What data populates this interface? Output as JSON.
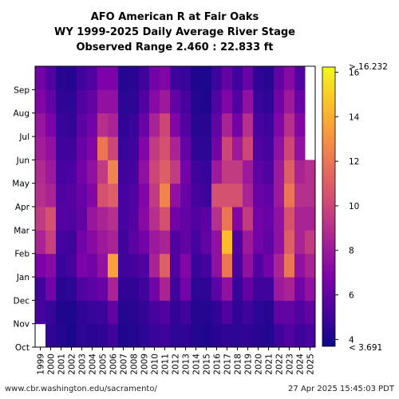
{
  "chart_data": {
    "type": "heatmap",
    "title_lines": [
      "AFO American R at Fair Oaks",
      "WY 1999-2025 Daily Average River Stage",
      "Observed Range 2.460 : 22.833 ft"
    ],
    "xlabel": "",
    "ylabel": "",
    "x_categories": [
      "1999",
      "2000",
      "2001",
      "2002",
      "2003",
      "2004",
      "2005",
      "2006",
      "2007",
      "2008",
      "2009",
      "2010",
      "2011",
      "2012",
      "2013",
      "2014",
      "2015",
      "2016",
      "2017",
      "2018",
      "2019",
      "2020",
      "2021",
      "2022",
      "2023",
      "2024",
      "2025"
    ],
    "y_month_labels": [
      "Oct",
      "Nov",
      "Dec",
      "Jan",
      "Feb",
      "Mar",
      "Apr",
      "May",
      "Jun",
      "Jul",
      "Aug",
      "Sep"
    ],
    "y_axis_note": "Water year day, Oct 1 at bottom to Sep 30 at top",
    "colorbar": {
      "colormap": "plasma",
      "vmin": 3.691,
      "vmax": 16.232,
      "ticks": [
        4,
        6,
        8,
        10,
        12,
        14,
        16
      ],
      "over_label": "> 16.232",
      "under_label": "< 3.691"
    },
    "monthly_stage_ft": [
      [
        null,
        5.2,
        5.0,
        6.8,
        8.5,
        9.5,
        9.0,
        8.8,
        8.2,
        7.8,
        7.0,
        6.5
      ],
      [
        4.6,
        4.8,
        6.5,
        7.2,
        9.8,
        10.5,
        8.5,
        8.0,
        7.5,
        6.8,
        6.0,
        5.5
      ],
      [
        4.3,
        4.2,
        4.4,
        4.8,
        5.2,
        5.6,
        5.5,
        5.2,
        5.0,
        4.8,
        4.6,
        4.4
      ],
      [
        4.0,
        4.1,
        4.5,
        5.2,
        5.0,
        5.5,
        5.6,
        5.3,
        5.0,
        4.7,
        4.5,
        4.3
      ],
      [
        4.5,
        4.6,
        5.5,
        6.8,
        6.5,
        6.0,
        6.2,
        6.5,
        6.2,
        5.8,
        5.5,
        5.0
      ],
      [
        4.4,
        4.8,
        5.8,
        6.5,
        7.2,
        7.8,
        7.0,
        7.5,
        7.0,
        6.5,
        6.0,
        5.5
      ],
      [
        4.6,
        4.9,
        6.2,
        7.5,
        8.0,
        8.5,
        10.5,
        9.5,
        12.0,
        9.0,
        7.5,
        6.8
      ],
      [
        5.0,
        6.0,
        8.5,
        13.5,
        8.5,
        9.0,
        11.0,
        12.5,
        10.0,
        8.5,
        7.5,
        6.8
      ],
      [
        4.2,
        4.3,
        4.6,
        5.0,
        5.0,
        5.2,
        5.2,
        5.0,
        4.8,
        4.6,
        4.5,
        4.3
      ],
      [
        4.3,
        4.4,
        4.6,
        5.2,
        5.8,
        5.6,
        5.5,
        5.2,
        5.0,
        4.8,
        4.5,
        4.4
      ],
      [
        4.5,
        4.7,
        5.0,
        5.5,
        6.5,
        7.2,
        7.0,
        7.5,
        7.0,
        6.2,
        5.5,
        5.0
      ],
      [
        4.8,
        5.2,
        6.5,
        8.5,
        8.0,
        9.0,
        9.5,
        10.0,
        9.5,
        8.5,
        7.2,
        6.5
      ],
      [
        5.0,
        5.5,
        8.5,
        11.0,
        8.5,
        10.5,
        12.5,
        11.0,
        10.5,
        10.0,
        8.0,
        7.0
      ],
      [
        4.5,
        4.6,
        5.0,
        5.5,
        5.5,
        6.5,
        7.5,
        9.5,
        8.5,
        7.0,
        6.0,
        5.0
      ],
      [
        4.6,
        5.0,
        6.5,
        7.0,
        6.0,
        6.0,
        6.2,
        6.5,
        6.0,
        5.5,
        5.2,
        4.8
      ],
      [
        4.3,
        4.3,
        4.5,
        4.8,
        5.2,
        5.5,
        5.2,
        5.0,
        4.6,
        4.4,
        4.3,
        4.2
      ],
      [
        4.2,
        4.3,
        4.6,
        5.2,
        6.0,
        5.8,
        5.0,
        4.8,
        4.5,
        4.4,
        4.2,
        4.1
      ],
      [
        4.4,
        4.6,
        5.8,
        7.5,
        7.5,
        9.0,
        10.5,
        8.0,
        6.5,
        6.0,
        5.5,
        5.0
      ],
      [
        4.6,
        5.5,
        7.5,
        12.0,
        14.5,
        12.0,
        10.5,
        9.5,
        10.0,
        8.5,
        7.0,
        6.0
      ],
      [
        4.5,
        4.6,
        4.8,
        5.2,
        5.5,
        7.0,
        10.5,
        9.5,
        8.0,
        6.5,
        5.5,
        5.0
      ],
      [
        4.6,
        5.0,
        6.0,
        7.5,
        8.0,
        9.5,
        8.5,
        8.0,
        10.0,
        9.0,
        7.5,
        6.2
      ],
      [
        4.4,
        4.5,
        5.0,
        5.5,
        6.5,
        6.5,
        6.2,
        5.8,
        5.5,
        5.2,
        4.8,
        4.6
      ],
      [
        4.3,
        4.4,
        5.0,
        6.5,
        6.0,
        6.2,
        6.0,
        5.5,
        5.2,
        5.0,
        4.6,
        4.4
      ],
      [
        5.0,
        6.0,
        8.0,
        8.5,
        7.5,
        7.5,
        8.0,
        8.0,
        7.5,
        7.0,
        6.5,
        6.0
      ],
      [
        5.5,
        6.0,
        8.5,
        12.0,
        11.0,
        10.5,
        12.0,
        11.0,
        10.0,
        9.0,
        8.0,
        7.2
      ],
      [
        5.0,
        5.5,
        6.5,
        7.5,
        8.5,
        8.5,
        9.0,
        8.5,
        7.5,
        7.0,
        6.2,
        5.5
      ],
      [
        5.2,
        6.0,
        7.5,
        8.5,
        9.5,
        8.5,
        9.0,
        9.0,
        null,
        null,
        null,
        null
      ]
    ]
  },
  "footer": {
    "source": "www.cbr.washington.edu/sacramento/",
    "timestamp": "27 Apr 2025 15:45:03 PDT"
  }
}
